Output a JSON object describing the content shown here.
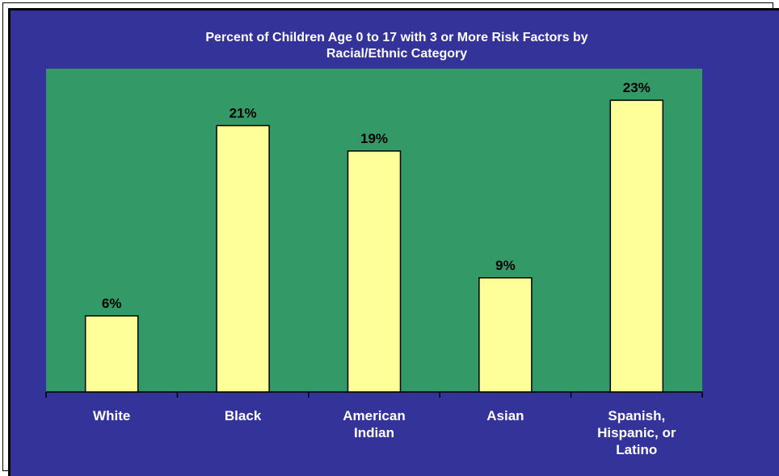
{
  "chart_data": {
    "type": "bar",
    "title": "Percent of Children Age 0 to 17 with 3 or More Risk Factors by Racial/Ethnic Category",
    "title_lines": [
      "Percent of Children Age 0 to 17 with 3 or More Risk Factors by",
      "Racial/Ethnic Category"
    ],
    "categories": [
      "White",
      "Black",
      "American Indian",
      "Asian",
      "Spanish, Hispanic, or Latino"
    ],
    "category_lines": [
      [
        "White"
      ],
      [
        "Black"
      ],
      [
        "American",
        "Indian"
      ],
      [
        "Asian"
      ],
      [
        "Spanish,",
        "Hispanic, or",
        "Latino"
      ]
    ],
    "values": [
      6,
      21,
      19,
      9,
      23
    ],
    "data_labels": [
      "6%",
      "21%",
      "19%",
      "9%",
      "23%"
    ],
    "xlabel": "",
    "ylabel": "",
    "ylim": [
      0,
      26
    ],
    "grid": false,
    "legend": "none",
    "colors": {
      "background": "#333399",
      "plot_area": "#339966",
      "bar_fill": "#FFFF99",
      "bar_stroke": "#000000",
      "title_text": "#FFFFFF",
      "category_text": "#FFFFFF",
      "data_label_text": "#000000"
    }
  }
}
